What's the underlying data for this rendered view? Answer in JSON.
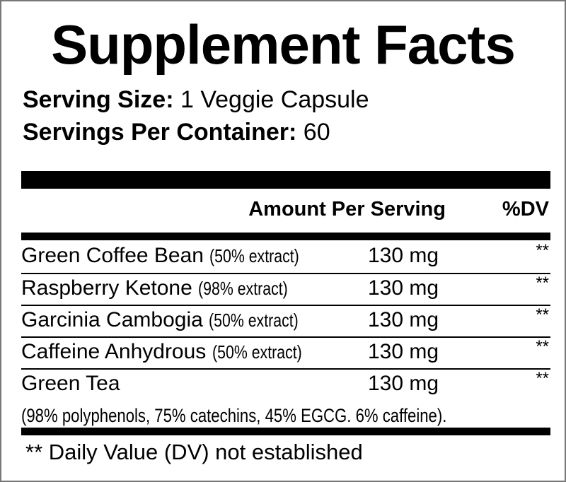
{
  "title": "Supplement Facts",
  "serving_size": {
    "label": "Serving Size:",
    "value": "1 Veggie Capsule"
  },
  "servings_per_container": {
    "label": "Servings Per Container:",
    "value": "60"
  },
  "header": {
    "amount": "Amount Per Serving",
    "dv": "%DV"
  },
  "rows": [
    {
      "name": "Green Coffee Bean",
      "extract": "(50% extract)",
      "amount": "130 mg",
      "dv": "**"
    },
    {
      "name": "Raspberry Ketone",
      "extract": "(98% extract)",
      "amount": "130 mg",
      "dv": "**"
    },
    {
      "name": "Garcinia Cambogia",
      "extract": "(50% extract)",
      "amount": "130 mg",
      "dv": "**"
    },
    {
      "name": "Caffeine Anhydrous",
      "extract": "(50% extract)",
      "amount": "130 mg",
      "dv": "**"
    },
    {
      "name": "Green Tea",
      "extract": "",
      "amount": "130 mg",
      "dv": "**"
    }
  ],
  "green_tea_note": "(98% polyphenols, 75% catechins, 45% EGCG. 6% caffeine).",
  "footnote": "** Daily Value (DV) not established"
}
